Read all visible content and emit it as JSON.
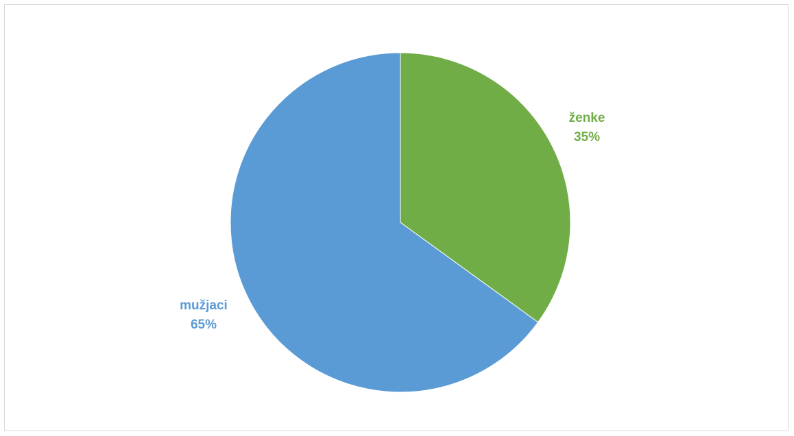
{
  "chart_data": {
    "type": "pie",
    "title": "",
    "slices": [
      {
        "label": "ženke",
        "value": 35,
        "percent_label": "35%",
        "color": "#70ad47"
      },
      {
        "label": "mužjaci",
        "value": 65,
        "percent_label": "65%",
        "color": "#5b9bd5"
      }
    ],
    "start_angle": "12 o'clock",
    "direction": "clockwise",
    "data_labels": "outside, category name and percentage",
    "legend": "none"
  }
}
